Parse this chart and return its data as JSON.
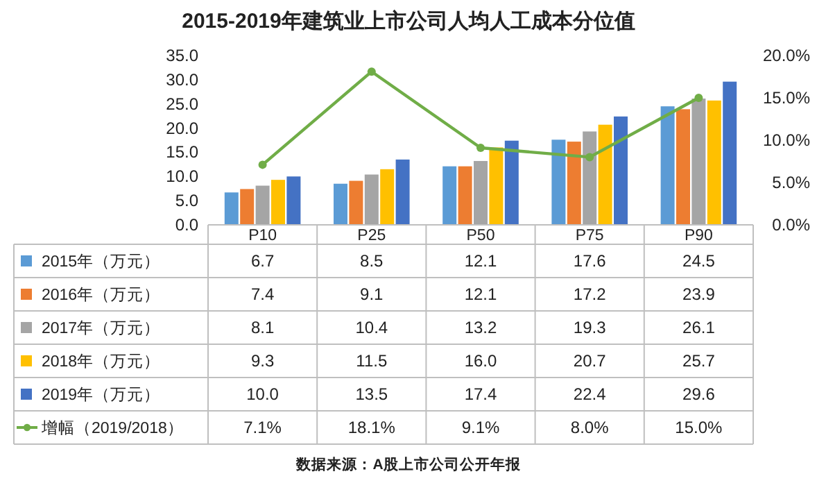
{
  "chart_data": {
    "type": "bar",
    "title": "2015-2019年建筑业上市公司人均人工成本分位值",
    "categories": [
      "P10",
      "P25",
      "P50",
      "P75",
      "P90"
    ],
    "ylim": [
      0,
      35
    ],
    "yticks": [
      {
        "value": 0,
        "label": "0.0"
      },
      {
        "value": 5,
        "label": "5.0"
      },
      {
        "value": 10,
        "label": "10.0"
      },
      {
        "value": 15,
        "label": "15.0"
      },
      {
        "value": 20,
        "label": "20.0"
      },
      {
        "value": 25,
        "label": "25.0"
      },
      {
        "value": 30,
        "label": "30.0"
      },
      {
        "value": 35,
        "label": "35.0"
      }
    ],
    "y2lim": [
      0,
      20
    ],
    "y2ticks": [
      {
        "value": 0,
        "label": "0.0%"
      },
      {
        "value": 5,
        "label": "5.0%"
      },
      {
        "value": 10,
        "label": "10.0%"
      },
      {
        "value": 15,
        "label": "15.0%"
      },
      {
        "value": 20,
        "label": "20.0%"
      }
    ],
    "legend": "bottom",
    "series": [
      {
        "name": "2015年（万元）",
        "color": "#5b9bd5",
        "values": [
          6.7,
          8.5,
          12.1,
          17.6,
          24.5
        ],
        "value_labels": [
          "6.7",
          "8.5",
          "12.1",
          "17.6",
          "24.5"
        ]
      },
      {
        "name": "2016年（万元）",
        "color": "#ed7d31",
        "values": [
          7.4,
          9.1,
          12.1,
          17.2,
          23.9
        ],
        "value_labels": [
          "7.4",
          "9.1",
          "12.1",
          "17.2",
          "23.9"
        ]
      },
      {
        "name": "2017年（万元）",
        "color": "#a5a5a5",
        "values": [
          8.1,
          10.4,
          13.2,
          19.3,
          26.1
        ],
        "value_labels": [
          "8.1",
          "10.4",
          "13.2",
          "19.3",
          "26.1"
        ]
      },
      {
        "name": "2018年（万元）",
        "color": "#ffc000",
        "values": [
          9.3,
          11.5,
          16.0,
          20.7,
          25.7
        ],
        "value_labels": [
          "9.3",
          "11.5",
          "16.0",
          "20.7",
          "25.7"
        ]
      },
      {
        "name": "2019年（万元）",
        "color": "#4472c4",
        "values": [
          10.0,
          13.5,
          17.4,
          22.4,
          29.6
        ],
        "value_labels": [
          "10.0",
          "13.5",
          "17.4",
          "22.4",
          "29.6"
        ]
      },
      {
        "name": "增幅（2019/2018）",
        "color": "#70ad47",
        "type": "line",
        "axis": "y2",
        "marker": "circle",
        "values": [
          7.1,
          18.1,
          9.1,
          8.0,
          15.0
        ],
        "value_labels": [
          "7.1%",
          "18.1%",
          "9.1%",
          "8.0%",
          "15.0%"
        ]
      }
    ],
    "annotations": [
      "数据来源：A股上市公司公开年报"
    ]
  }
}
